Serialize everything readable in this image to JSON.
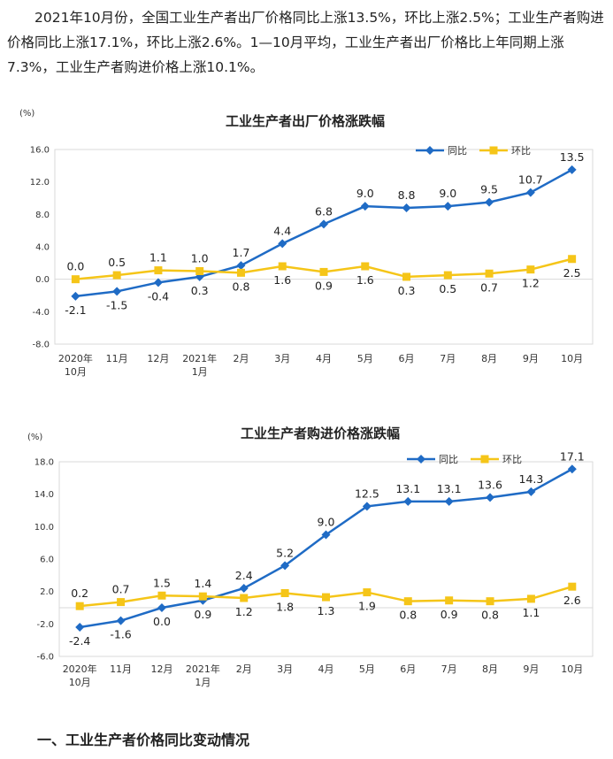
{
  "article": {
    "intro": "2021年10月份，全国工业生产者出厂价格同比上涨13.5%，环比上涨2.5%；工业生产者购进价格同比上涨17.1%，环比上涨2.6%。1—10月平均，工业生产者出厂价格比上年同期上涨7.3%，工业生产者购进价格上涨10.1%。",
    "section_heading": "一、工业生产者价格同比变动情况"
  },
  "colors": {
    "yoy": "#1f6bc5",
    "mom": "#f5c518"
  },
  "chart_data": [
    {
      "type": "line",
      "title": "工业生产者出厂价格涨跌幅",
      "unit_label": "(%)",
      "categories": [
        "2020年\n10月",
        "11月",
        "12月",
        "2021年\n1月",
        "2月",
        "3月",
        "4月",
        "5月",
        "6月",
        "7月",
        "8月",
        "9月",
        "10月"
      ],
      "yticks": [
        "16.0",
        "12.0",
        "8.0",
        "4.0",
        "0.0",
        "-4.0",
        "-8.0"
      ],
      "ylim": [
        -8,
        16
      ],
      "grid": false,
      "legend_position": "top-right",
      "series": [
        {
          "name": "同比",
          "values": [
            -2.1,
            -1.5,
            -0.4,
            0.3,
            1.7,
            4.4,
            6.8,
            9.0,
            8.8,
            9.0,
            9.5,
            10.7,
            13.5
          ],
          "labels": [
            "-2.1",
            "-1.5",
            "-0.4",
            "0.3",
            "1.7",
            "4.4",
            "6.8",
            "9.0",
            "8.8",
            "9.0",
            "9.5",
            "10.7",
            "13.5"
          ]
        },
        {
          "name": "环比",
          "values": [
            0.0,
            0.5,
            1.1,
            1.0,
            0.8,
            1.6,
            0.9,
            1.6,
            0.3,
            0.5,
            0.7,
            1.2,
            2.5
          ],
          "labels": [
            "0.0",
            "0.5",
            "1.1",
            "1.0",
            "0.8",
            "1.6",
            "0.9",
            "1.6",
            "0.3",
            "0.5",
            "0.7",
            "1.2",
            "2.5"
          ]
        }
      ]
    },
    {
      "type": "line",
      "title": "工业生产者购进价格涨跌幅",
      "unit_label": "(%)",
      "categories": [
        "2020年\n10月",
        "11月",
        "12月",
        "2021年\n1月",
        "2月",
        "3月",
        "4月",
        "5月",
        "6月",
        "7月",
        "8月",
        "9月",
        "10月"
      ],
      "yticks": [
        "18.0",
        "14.0",
        "10.0",
        "6.0",
        "2.0",
        "-2.0",
        "-6.0"
      ],
      "ylim": [
        -6,
        18
      ],
      "grid": false,
      "legend_position": "top-right",
      "series": [
        {
          "name": "同比",
          "values": [
            -2.4,
            -1.6,
            0.0,
            0.9,
            2.4,
            5.2,
            9.0,
            12.5,
            13.1,
            13.1,
            13.6,
            14.3,
            17.1
          ],
          "labels": [
            "-2.4",
            "-1.6",
            "0.0",
            "0.9",
            "2.4",
            "5.2",
            "9.0",
            "12.5",
            "13.1",
            "13.1",
            "13.6",
            "14.3",
            "17.1"
          ]
        },
        {
          "name": "环比",
          "values": [
            0.2,
            0.7,
            1.5,
            1.4,
            1.2,
            1.8,
            1.3,
            1.9,
            0.8,
            0.9,
            0.8,
            1.1,
            2.6
          ],
          "labels": [
            "0.2",
            "0.7",
            "1.5",
            "1.4",
            "1.2",
            "1.8",
            "1.3",
            "1.9",
            "0.8",
            "0.9",
            "0.8",
            "1.1",
            "2.6"
          ]
        }
      ]
    }
  ]
}
